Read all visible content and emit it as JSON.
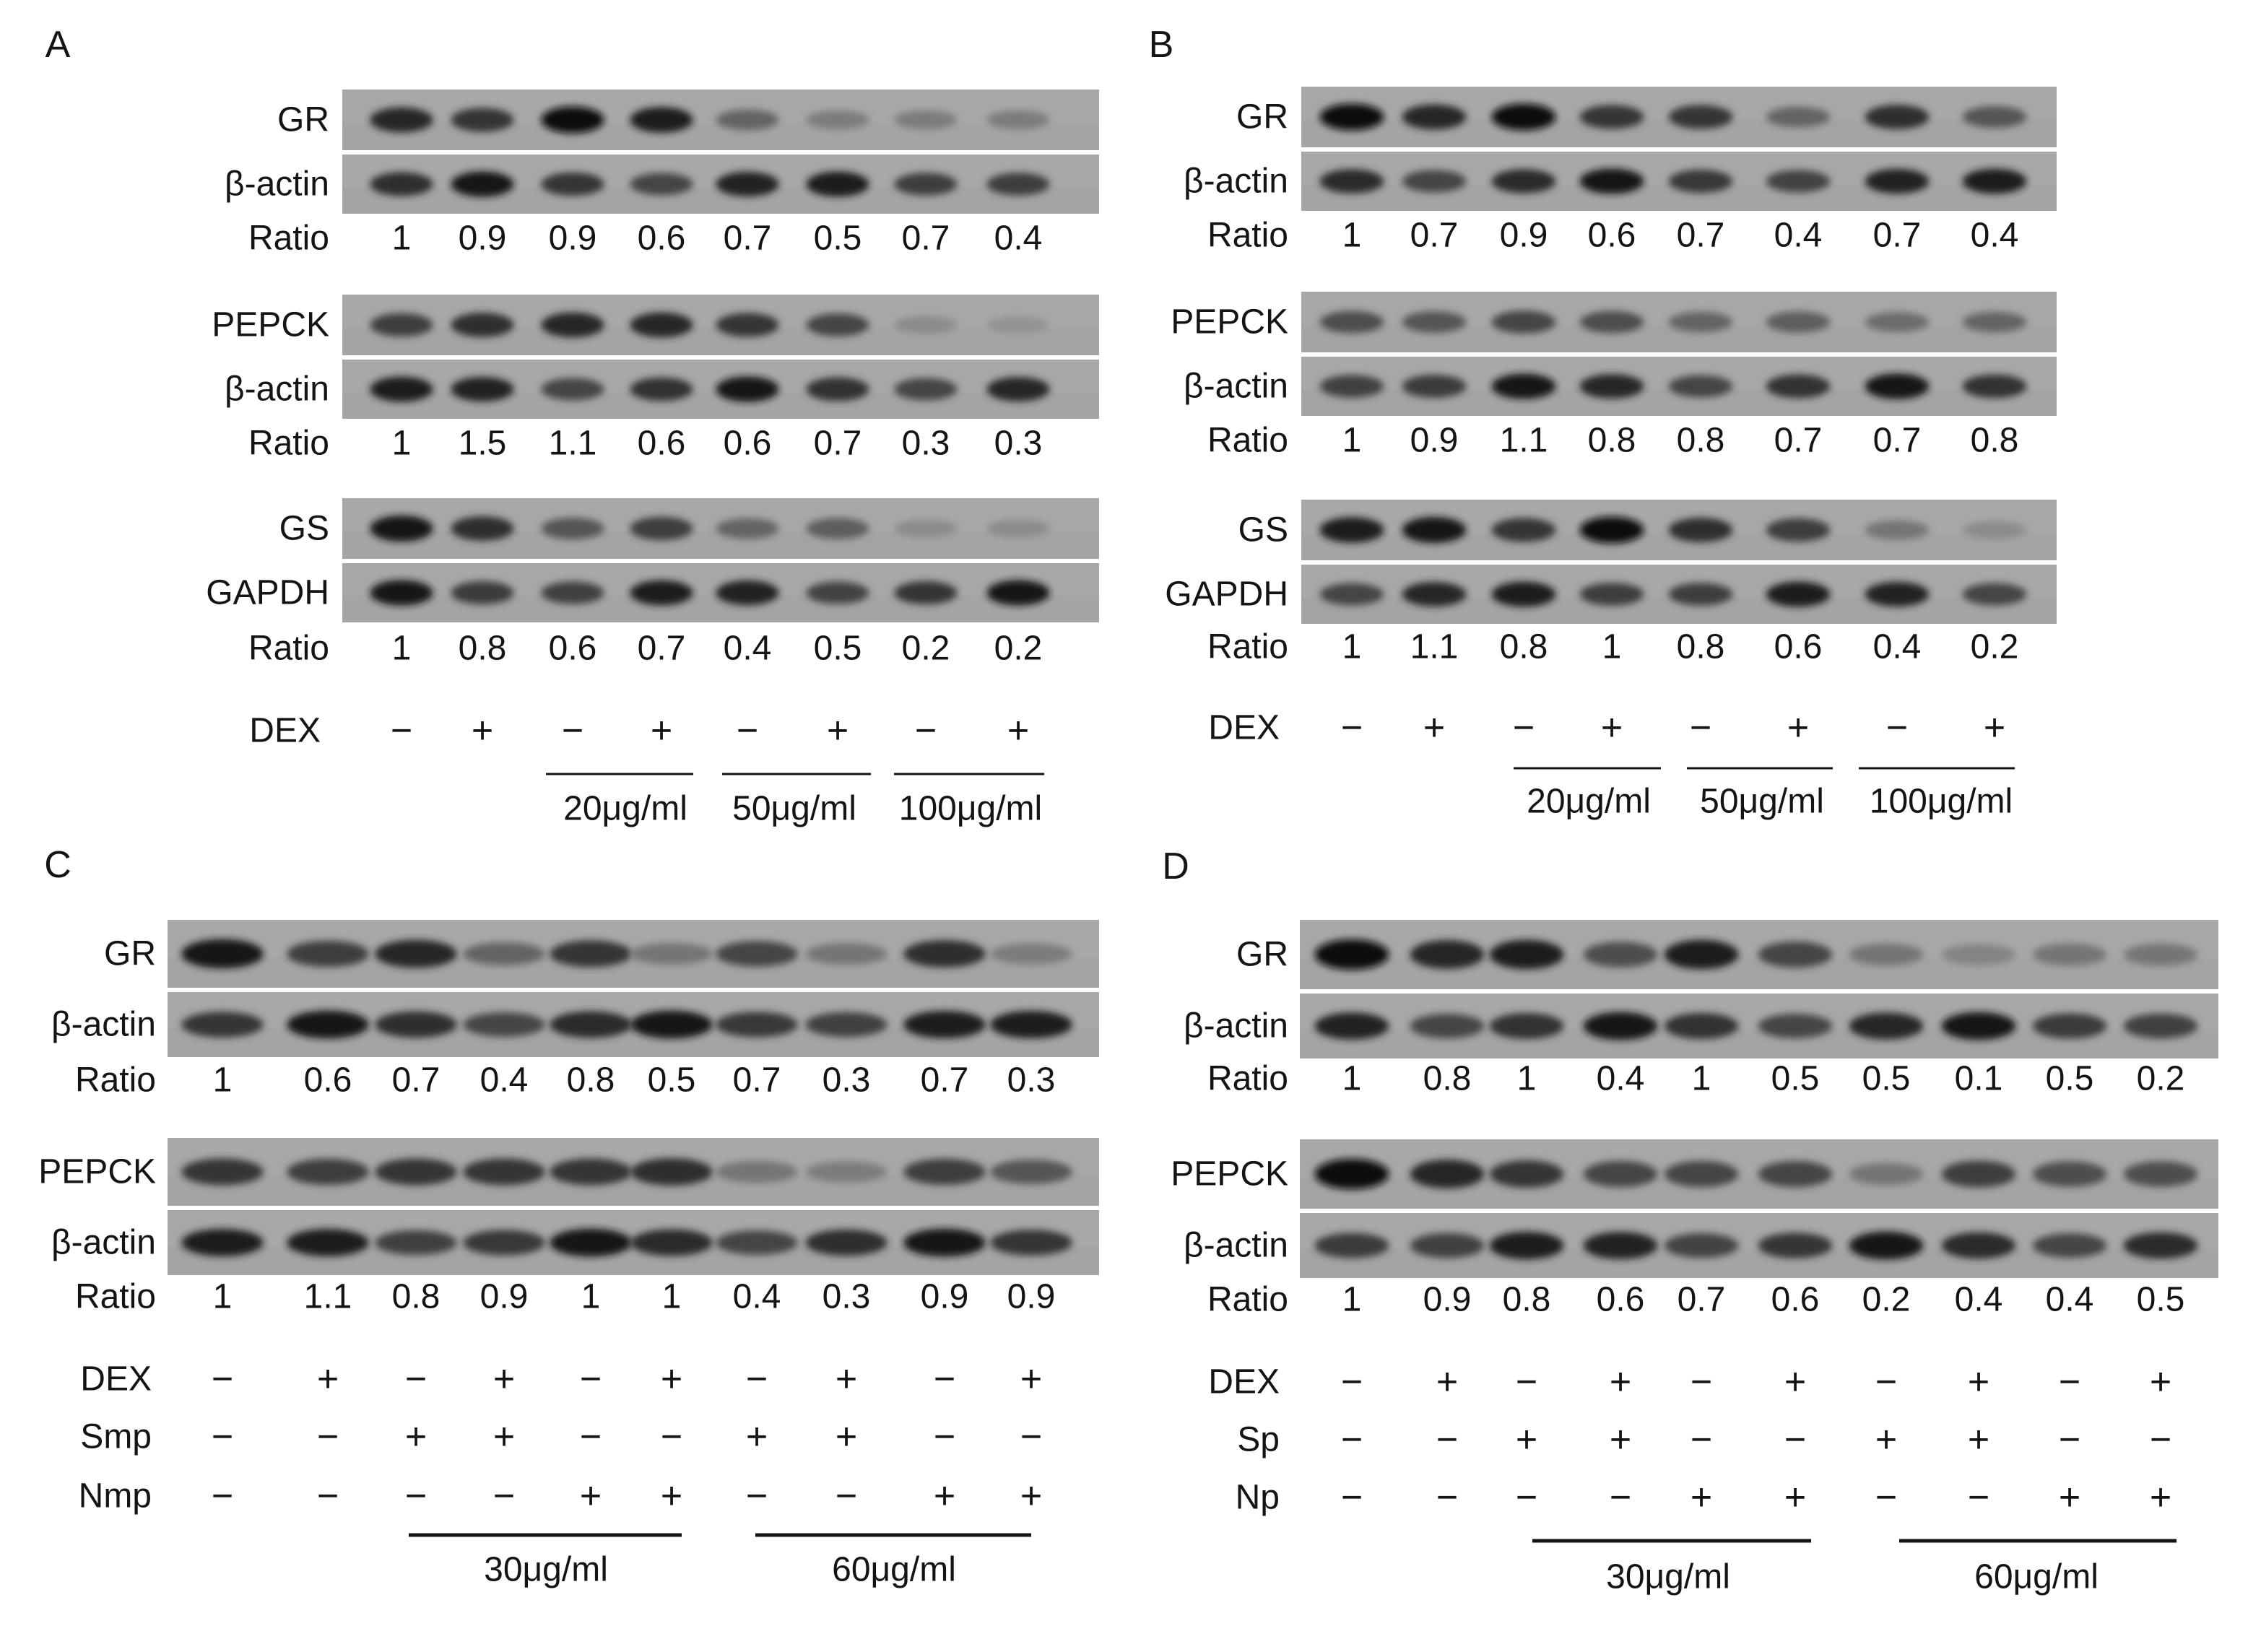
{
  "panels": [
    {
      "letter": "A",
      "groups": [
        {
          "labels": [
            "GR",
            "β-actin"
          ],
          "ratio_label": "Ratio",
          "ratios": [
            "1",
            "0.9",
            "0.9",
            "0.6",
            "0.7",
            "0.5",
            "0.7",
            "0.4"
          ],
          "intensity": [
            0.85,
            0.75,
            1.0,
            0.9,
            0.45,
            0.3,
            0.3,
            0.3
          ]
        },
        {
          "labels": [
            "PEPCK",
            "β-actin"
          ],
          "ratio_label": "Ratio",
          "ratios": [
            "1",
            "1.5",
            "1.1",
            "0.6",
            "0.6",
            "0.7",
            "0.3",
            "0.3"
          ],
          "intensity": [
            0.7,
            0.8,
            0.85,
            0.85,
            0.75,
            0.65,
            0.2,
            0.15
          ]
        },
        {
          "labels": [
            "GS",
            "GAPDH"
          ],
          "ratio_label": "Ratio",
          "ratios": [
            "1",
            "0.8",
            "0.6",
            "0.7",
            "0.4",
            "0.5",
            "0.2",
            "0.2"
          ],
          "intensity": [
            0.95,
            0.8,
            0.55,
            0.7,
            0.45,
            0.5,
            0.2,
            0.2
          ]
        }
      ],
      "treatments": [
        {
          "label": "DEX",
          "signs": [
            "−",
            "+",
            "−",
            "+",
            "−",
            "+",
            "−",
            "+"
          ]
        }
      ],
      "concentrations": [
        "20μg/ml",
        "50μg/ml",
        "100μg/ml"
      ]
    },
    {
      "letter": "B",
      "groups": [
        {
          "labels": [
            "GR",
            "β-actin"
          ],
          "ratio_label": "Ratio",
          "ratios": [
            "1",
            "0.7",
            "0.9",
            "0.6",
            "0.7",
            "0.4",
            "0.7",
            "0.4"
          ],
          "intensity": [
            1.0,
            0.85,
            1.0,
            0.75,
            0.75,
            0.45,
            0.8,
            0.55
          ]
        },
        {
          "labels": [
            "PEPCK",
            "β-actin"
          ],
          "ratio_label": "Ratio",
          "ratios": [
            "1",
            "0.9",
            "1.1",
            "0.8",
            "0.8",
            "0.7",
            "0.7",
            "0.8"
          ],
          "intensity": [
            0.6,
            0.55,
            0.65,
            0.6,
            0.45,
            0.5,
            0.4,
            0.45
          ]
        },
        {
          "labels": [
            "GS",
            "GAPDH"
          ],
          "ratio_label": "Ratio",
          "ratios": [
            "1",
            "1.1",
            "0.8",
            "1",
            "0.8",
            "0.6",
            "0.4",
            "0.2"
          ],
          "intensity": [
            0.9,
            0.95,
            0.75,
            1.0,
            0.8,
            0.7,
            0.35,
            0.2
          ]
        }
      ],
      "treatments": [
        {
          "label": "DEX",
          "signs": [
            "−",
            "+",
            "−",
            "+",
            "−",
            "+",
            "−",
            "+"
          ]
        }
      ],
      "concentrations": [
        "20μg/ml",
        "50μg/ml",
        "100μg/ml"
      ]
    },
    {
      "letter": "C",
      "groups": [
        {
          "labels": [
            "GR",
            "β-actin"
          ],
          "ratio_label": "Ratio",
          "ratios": [
            "1",
            "0.6",
            "0.7",
            "0.4",
            "0.8",
            "0.5",
            "0.7",
            "0.3",
            "0.7",
            "0.3"
          ],
          "intensity": [
            0.95,
            0.7,
            0.85,
            0.45,
            0.75,
            0.35,
            0.65,
            0.35,
            0.8,
            0.3
          ]
        },
        {
          "labels": [
            "PEPCK",
            "β-actin"
          ],
          "ratio_label": "Ratio",
          "ratios": [
            "1",
            "1.1",
            "0.8",
            "0.9",
            "1",
            "1",
            "0.4",
            "0.3",
            "0.9",
            "0.9"
          ],
          "intensity": [
            0.75,
            0.7,
            0.75,
            0.75,
            0.75,
            0.8,
            0.35,
            0.3,
            0.7,
            0.55
          ]
        }
      ],
      "treatments": [
        {
          "label": "DEX",
          "signs": [
            "−",
            "+",
            "−",
            "+",
            "−",
            "+",
            "−",
            "+",
            "−",
            "+"
          ]
        },
        {
          "label": "Smp",
          "signs": [
            "−",
            "−",
            "+",
            "+",
            "−",
            "−",
            "+",
            "+",
            "−",
            "−"
          ]
        },
        {
          "label": "Nmp",
          "signs": [
            "−",
            "−",
            "−",
            "−",
            "+",
            "+",
            "−",
            "−",
            "+",
            "+"
          ]
        }
      ],
      "concentrations": [
        "30μg/ml",
        "60μg/ml"
      ]
    },
    {
      "letter": "D",
      "groups": [
        {
          "labels": [
            "GR",
            "β-actin"
          ],
          "ratio_label": "Ratio",
          "ratios": [
            "1",
            "0.8",
            "1",
            "0.4",
            "1",
            "0.5",
            "0.5",
            "0.1",
            "0.5",
            "0.2"
          ],
          "intensity": [
            1.0,
            0.85,
            0.9,
            0.6,
            0.9,
            0.65,
            0.35,
            0.25,
            0.35,
            0.35
          ]
        },
        {
          "labels": [
            "PEPCK",
            "β-actin"
          ],
          "ratio_label": "Ratio",
          "ratios": [
            "1",
            "0.9",
            "0.8",
            "0.6",
            "0.7",
            "0.6",
            "0.2",
            "0.4",
            "0.4",
            "0.5"
          ],
          "intensity": [
            1.0,
            0.85,
            0.75,
            0.65,
            0.65,
            0.65,
            0.35,
            0.7,
            0.6,
            0.6
          ]
        }
      ],
      "treatments": [
        {
          "label": "DEX",
          "signs": [
            "−",
            "+",
            "−",
            "+",
            "−",
            "+",
            "−",
            "+",
            "−",
            "+"
          ]
        },
        {
          "label": "Sp",
          "signs": [
            "−",
            "−",
            "+",
            "+",
            "−",
            "−",
            "+",
            "+",
            "−",
            "−"
          ]
        },
        {
          "label": "Np",
          "signs": [
            "−",
            "−",
            "−",
            "−",
            "+",
            "+",
            "−",
            "−",
            "+",
            "+"
          ]
        }
      ],
      "concentrations": [
        "30μg/ml",
        "60μg/ml"
      ]
    }
  ]
}
